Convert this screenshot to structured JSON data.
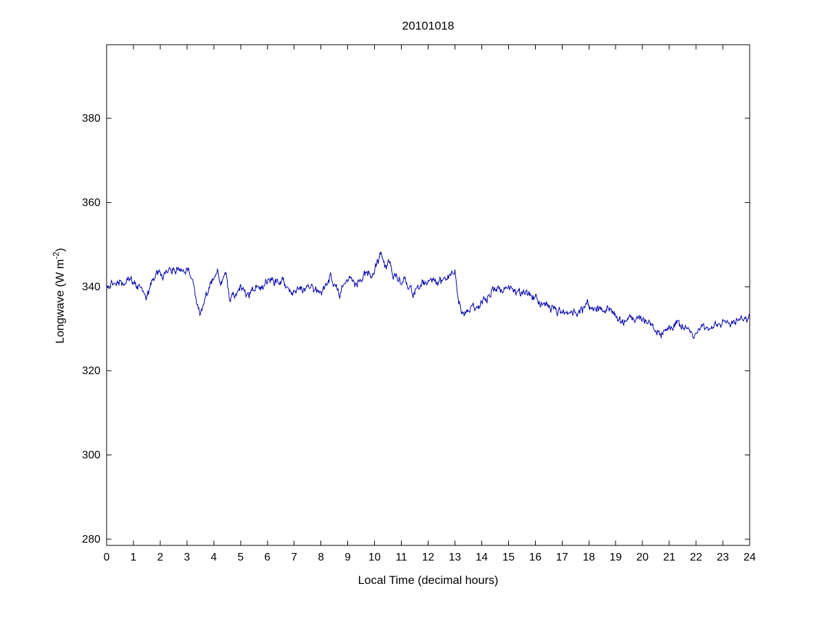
{
  "chart_data": {
    "type": "line",
    "title": "20101018",
    "xlabel": "Local Time (decimal hours)",
    "ylabel_base": "Longwave (W m",
    "ylabel_exp": "-2",
    "ylabel_close": ")",
    "xlim": [
      0,
      24
    ],
    "ylim": [
      278.5,
      397.5
    ],
    "xticks": [
      0,
      1,
      2,
      3,
      4,
      5,
      6,
      7,
      8,
      9,
      10,
      11,
      12,
      13,
      14,
      15,
      16,
      17,
      18,
      19,
      20,
      21,
      22,
      23,
      24
    ],
    "yticks": [
      280,
      300,
      320,
      340,
      360,
      380
    ],
    "grid": false,
    "legend": "none",
    "line_color": "#0000AA",
    "axis_color": "#000000",
    "background_color": "#ffffff",
    "series": [
      {
        "name": "longwave",
        "x": [
          0,
          0.15,
          0.3,
          0.5,
          0.7,
          0.9,
          1.1,
          1.3,
          1.45,
          1.6,
          1.8,
          2.0,
          2.1,
          2.3,
          2.5,
          2.7,
          2.9,
          3.05,
          3.2,
          3.35,
          3.5,
          3.65,
          3.8,
          4.0,
          4.15,
          4.3,
          4.45,
          4.6,
          4.8,
          5.0,
          5.2,
          5.4,
          5.6,
          5.8,
          6.0,
          6.2,
          6.4,
          6.6,
          6.8,
          7.0,
          7.2,
          7.4,
          7.6,
          7.8,
          8.0,
          8.2,
          8.35,
          8.5,
          8.7,
          8.9,
          9.1,
          9.3,
          9.5,
          9.7,
          9.9,
          10.1,
          10.25,
          10.4,
          10.55,
          10.7,
          10.9,
          11.1,
          11.3,
          11.5,
          11.7,
          11.9,
          12.1,
          12.3,
          12.5,
          12.7,
          12.9,
          13.0,
          13.1,
          13.25,
          13.4,
          13.6,
          13.8,
          14.0,
          14.2,
          14.4,
          14.6,
          14.8,
          15.0,
          15.2,
          15.4,
          15.6,
          15.8,
          16.0,
          16.2,
          16.4,
          16.6,
          16.8,
          17.0,
          17.2,
          17.4,
          17.6,
          17.8,
          17.95,
          18.1,
          18.3,
          18.5,
          18.7,
          18.9,
          19.1,
          19.3,
          19.5,
          19.7,
          19.9,
          20.1,
          20.3,
          20.5,
          20.7,
          20.9,
          21.1,
          21.3,
          21.5,
          21.7,
          21.9,
          22.1,
          22.3,
          22.5,
          22.7,
          22.9,
          23.1,
          23.3,
          23.5,
          23.7,
          23.9,
          24.0
        ],
        "y": [
          339.5,
          341,
          340.5,
          341.5,
          341,
          341.5,
          340.5,
          339.5,
          337.5,
          339.5,
          342.5,
          343.5,
          342.5,
          344,
          343.5,
          344.5,
          343,
          344,
          341.5,
          336,
          333,
          336.5,
          339,
          342.5,
          343.5,
          341,
          343.5,
          337,
          338.5,
          340,
          337.5,
          339,
          340.5,
          339.5,
          341,
          341.5,
          340.5,
          341,
          339.5,
          338.5,
          339.5,
          338.5,
          340,
          339,
          338,
          340,
          342.5,
          340.5,
          338.5,
          340.5,
          342.5,
          340.5,
          342,
          343.5,
          342.5,
          345.5,
          348,
          344.5,
          346,
          342.5,
          341,
          341.5,
          339,
          338.5,
          340,
          341,
          342.5,
          341,
          341.5,
          342,
          343,
          343.5,
          337,
          334,
          333.5,
          335.5,
          334.5,
          336.5,
          337.5,
          339,
          339.5,
          338.5,
          340,
          339,
          338.5,
          339,
          338,
          337.5,
          336,
          336.5,
          334.5,
          334,
          333.5,
          334,
          333.5,
          334,
          334.5,
          336.5,
          334,
          334.5,
          334,
          335,
          334.5,
          332,
          331.5,
          333,
          332,
          332.5,
          331.5,
          331,
          329.5,
          328.5,
          329.5,
          330,
          331.5,
          330.5,
          329.5,
          328.5,
          330,
          330.5,
          329.5,
          331,
          330.5,
          331.5,
          331,
          332,
          332.5,
          332,
          333
        ]
      }
    ],
    "noise": {
      "seed": 20101018,
      "amplitude": 1.1,
      "correlation": 0.45,
      "step_hours": 0.02
    }
  }
}
